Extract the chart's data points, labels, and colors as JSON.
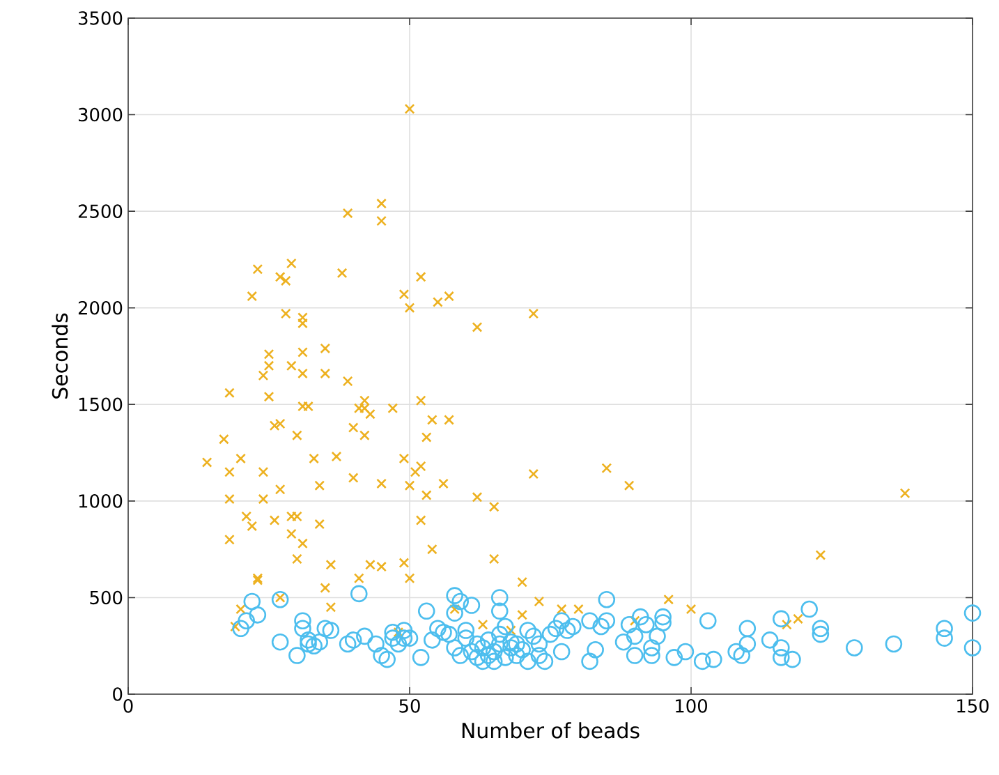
{
  "chart_data": {
    "type": "scatter",
    "xlabel": "Number of beads",
    "ylabel": "Seconds",
    "xlim": [
      0,
      150
    ],
    "ylim": [
      0,
      3500
    ],
    "xticks": [
      0,
      50,
      100,
      150
    ],
    "yticks": [
      0,
      500,
      1000,
      1500,
      2000,
      2500,
      3000,
      3500
    ],
    "grid": true,
    "series": [
      {
        "color": "#edb120",
        "marker": "cross",
        "x": [
          14,
          17,
          18,
          18,
          18,
          18,
          19,
          20,
          20,
          21,
          22,
          22,
          23,
          23,
          23,
          24,
          24,
          24,
          25,
          25,
          25,
          26,
          26,
          27,
          27,
          27,
          27,
          28,
          28,
          29,
          29,
          29,
          29,
          30,
          30,
          30,
          31,
          31,
          31,
          31,
          31,
          31,
          32,
          33,
          34,
          34,
          35,
          35,
          35,
          36,
          36,
          37,
          38,
          39,
          39,
          40,
          40,
          41,
          41,
          42,
          42,
          42,
          43,
          43,
          45,
          45,
          45,
          45,
          47,
          48,
          49,
          49,
          49,
          50,
          50,
          50,
          50,
          51,
          52,
          52,
          52,
          52,
          53,
          53,
          54,
          54,
          55,
          56,
          57,
          57,
          58,
          62,
          62,
          63,
          65,
          65,
          68,
          70,
          70,
          72,
          72,
          73,
          77,
          80,
          85,
          89,
          90,
          96,
          100,
          117,
          119,
          123,
          138
        ],
        "values": [
          1200,
          1320,
          1560,
          1150,
          1010,
          800,
          350,
          1220,
          440,
          920,
          2060,
          870,
          2200,
          600,
          590,
          1150,
          1010,
          1650,
          1760,
          1700,
          1540,
          1390,
          900,
          2160,
          1400,
          1060,
          500,
          1970,
          2140,
          2230,
          830,
          1700,
          920,
          700,
          1340,
          920,
          1950,
          1920,
          1770,
          1660,
          1490,
          780,
          1490,
          1220,
          1080,
          880,
          1790,
          1660,
          550,
          670,
          450,
          1230,
          2180,
          2490,
          1620,
          1380,
          1120,
          1480,
          600,
          1340,
          1520,
          1480,
          1450,
          670,
          2540,
          2450,
          1090,
          660,
          1480,
          320,
          2070,
          1220,
          680,
          3030,
          2000,
          1080,
          600,
          1150,
          1180,
          2160,
          1520,
          900,
          1330,
          1030,
          1420,
          750,
          2030,
          1090,
          2060,
          1420,
          440,
          1900,
          1020,
          360,
          970,
          700,
          330,
          410,
          580,
          1970,
          1140,
          480,
          440,
          440,
          1170,
          1080,
          380,
          490,
          440,
          360,
          390,
          720,
          1040
        ]
      },
      {
        "color": "#4dbeee",
        "marker": "circle",
        "x": [
          20,
          21,
          22,
          23,
          27,
          27,
          30,
          31,
          31,
          32,
          32,
          33,
          34,
          35,
          36,
          39,
          40,
          41,
          42,
          44,
          45,
          46,
          47,
          47,
          48,
          49,
          49,
          50,
          52,
          53,
          54,
          55,
          56,
          57,
          58,
          58,
          58,
          59,
          59,
          60,
          60,
          61,
          61,
          62,
          62,
          63,
          63,
          64,
          64,
          65,
          65,
          66,
          66,
          66,
          66,
          67,
          67,
          68,
          68,
          69,
          69,
          70,
          71,
          71,
          72,
          73,
          73,
          74,
          75,
          76,
          77,
          77,
          78,
          79,
          82,
          82,
          83,
          84,
          85,
          85,
          88,
          89,
          90,
          90,
          91,
          92,
          93,
          93,
          94,
          95,
          95,
          97,
          99,
          102,
          103,
          104,
          108,
          109,
          110,
          110,
          114,
          116,
          116,
          116,
          118,
          121,
          123,
          123,
          129,
          136,
          145,
          145,
          150,
          150
        ],
        "values": [
          340,
          380,
          480,
          410,
          490,
          270,
          200,
          380,
          340,
          280,
          260,
          250,
          270,
          340,
          330,
          260,
          280,
          520,
          300,
          260,
          200,
          180,
          320,
          290,
          260,
          330,
          290,
          290,
          190,
          430,
          280,
          340,
          320,
          310,
          510,
          420,
          240,
          480,
          200,
          330,
          290,
          220,
          460,
          260,
          190,
          240,
          170,
          200,
          280,
          220,
          170,
          500,
          430,
          310,
          260,
          190,
          350,
          240,
          270,
          200,
          260,
          230,
          330,
          170,
          300,
          260,
          200,
          170,
          310,
          340,
          220,
          380,
          330,
          350,
          170,
          380,
          230,
          350,
          490,
          380,
          270,
          360,
          200,
          300,
          400,
          360,
          240,
          200,
          300,
          400,
          370,
          190,
          220,
          170,
          380,
          180,
          220,
          200,
          340,
          260,
          280,
          390,
          240,
          190,
          180,
          440,
          310,
          340,
          240,
          260,
          340,
          290,
          420,
          240
        ]
      }
    ]
  }
}
